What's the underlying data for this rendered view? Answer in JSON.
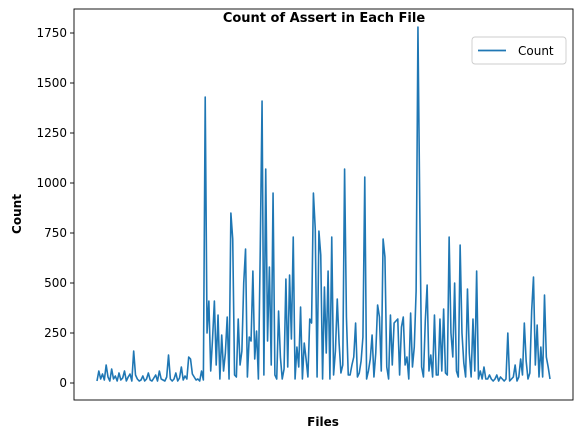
{
  "chart_data": {
    "type": "line",
    "title": "Count of Assert in Each File",
    "xlabel": "Files",
    "ylabel": "Count",
    "ylim": [
      -85,
      1870
    ],
    "yticks": [
      0,
      250,
      500,
      750,
      1000,
      1250,
      1500,
      1750
    ],
    "ytick_labels": [
      "0",
      "250",
      "500",
      "750",
      "1000",
      "1250",
      "1500",
      "1750"
    ],
    "xtick_labels": [],
    "grid": false,
    "legend_position": "top-right",
    "series": [
      {
        "name": "Count",
        "color": "#1f77b4",
        "values": [
          10,
          60,
          20,
          45,
          15,
          90,
          30,
          10,
          70,
          20,
          35,
          10,
          50,
          15,
          25,
          60,
          10,
          30,
          45,
          10,
          160,
          40,
          20,
          10,
          15,
          35,
          10,
          20,
          50,
          15,
          10,
          25,
          40,
          10,
          60,
          20,
          15,
          10,
          30,
          140,
          20,
          10,
          20,
          50,
          10,
          25,
          80,
          15,
          35,
          20,
          130,
          120,
          45,
          30,
          15,
          20,
          10,
          60,
          15,
          1430,
          250,
          410,
          60,
          220,
          410,
          90,
          340,
          20,
          240,
          60,
          150,
          330,
          20,
          850,
          720,
          40,
          30,
          320,
          90,
          160,
          500,
          670,
          30,
          230,
          210,
          560,
          120,
          260,
          20,
          660,
          1410,
          40,
          1070,
          210,
          580,
          90,
          950,
          40,
          20,
          360,
          130,
          20,
          70,
          520,
          80,
          540,
          220,
          730,
          20,
          180,
          80,
          380,
          20,
          200,
          120,
          30,
          320,
          300,
          950,
          770,
          30,
          760,
          640,
          20,
          480,
          150,
          560,
          20,
          730,
          40,
          160,
          420,
          200,
          50,
          90,
          1070,
          330,
          40,
          40,
          90,
          130,
          300,
          30,
          50,
          110,
          230,
          1030,
          20,
          60,
          120,
          240,
          30,
          150,
          390,
          330,
          60,
          720,
          630,
          80,
          20,
          340,
          90,
          300,
          310,
          320,
          40,
          280,
          330,
          90,
          130,
          20,
          350,
          80,
          180,
          460,
          1780,
          870,
          80,
          30,
          310,
          490,
          60,
          140,
          30,
          340,
          40,
          40,
          320,
          60,
          370,
          50,
          40,
          730,
          250,
          130,
          500,
          60,
          30,
          690,
          250,
          100,
          30,
          470,
          150,
          30,
          320,
          60,
          560,
          20,
          60,
          20,
          80,
          20,
          20,
          40,
          20,
          10,
          20,
          40,
          10,
          30,
          20,
          10,
          20,
          250,
          10,
          20,
          30,
          90,
          10,
          30,
          120,
          40,
          300,
          110,
          20,
          50,
          360,
          530,
          90,
          290,
          30,
          180,
          30,
          440,
          130,
          80,
          20
        ]
      }
    ]
  }
}
